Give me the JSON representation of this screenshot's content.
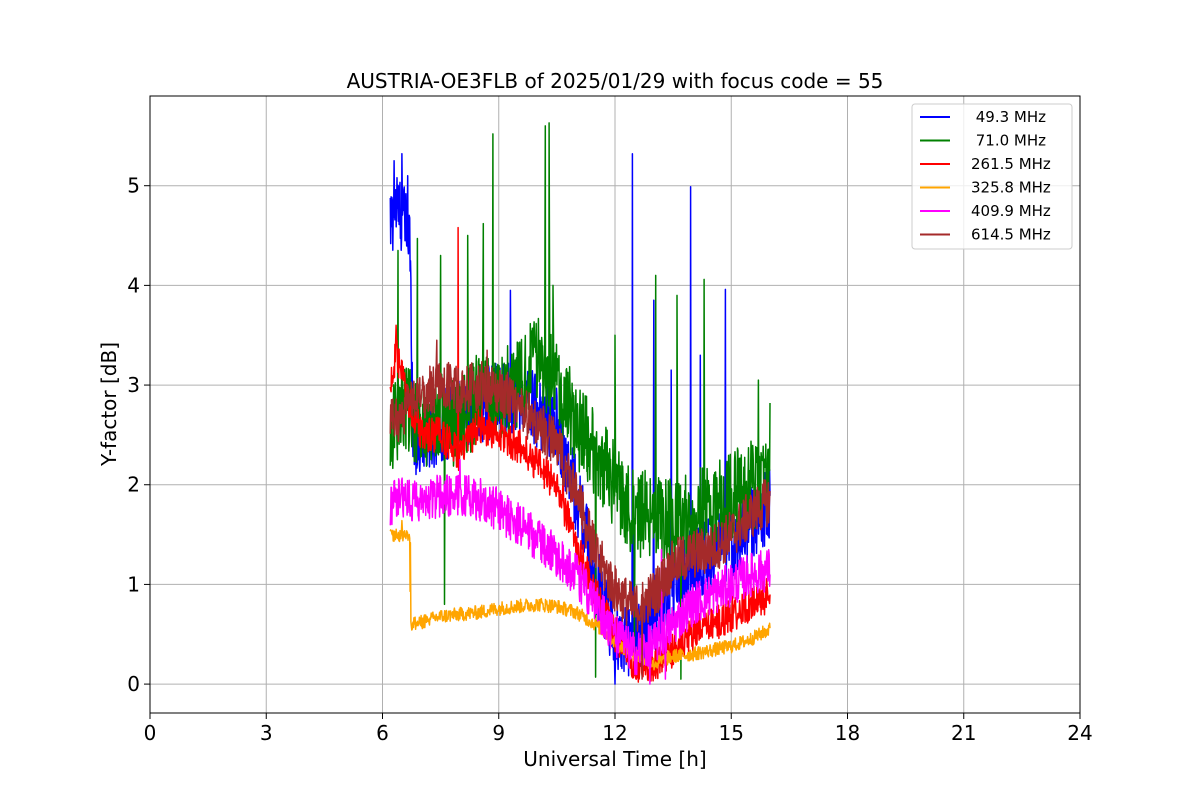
{
  "chart_data": {
    "type": "line",
    "title": "AUSTRIA-OE3FLB of 2025/01/29 with focus code = 55",
    "xlabel": "Universal Time [h]",
    "ylabel": "Y-factor [dB]",
    "xlim": [
      0,
      24
    ],
    "ylim": [
      -0.29,
      5.9
    ],
    "xticks": [
      0,
      3,
      6,
      9,
      12,
      15,
      18,
      21,
      24
    ],
    "yticks": [
      0,
      1,
      2,
      3,
      4,
      5
    ],
    "grid": true,
    "legend_position": "top-right",
    "series": [
      {
        "name": " 49.3 MHz",
        "color": "#0000ff",
        "base": [
          [
            6.2,
            4.6
          ],
          [
            6.35,
            4.8
          ],
          [
            6.5,
            4.7
          ],
          [
            6.7,
            4.5
          ],
          [
            6.8,
            2.4
          ],
          [
            7.5,
            2.6
          ],
          [
            8.5,
            2.8
          ],
          [
            9.5,
            2.9
          ],
          [
            10.5,
            2.6
          ],
          [
            11.0,
            1.9
          ],
          [
            11.5,
            1.1
          ],
          [
            12.0,
            0.5
          ],
          [
            12.5,
            0.4
          ],
          [
            13.0,
            0.6
          ],
          [
            13.5,
            1.0
          ],
          [
            14.0,
            1.2
          ],
          [
            15.0,
            1.4
          ],
          [
            16.0,
            1.8
          ]
        ],
        "noise": 0.38,
        "spikes": [
          [
            6.3,
            5.25
          ],
          [
            6.5,
            5.32
          ],
          [
            6.65,
            5.1
          ],
          [
            9.3,
            3.95
          ],
          [
            12.45,
            5.32
          ],
          [
            13.0,
            3.85
          ],
          [
            13.45,
            3.15
          ],
          [
            13.95,
            4.99
          ],
          [
            14.2,
            3.3
          ],
          [
            14.85,
            3.96
          ]
        ],
        "dips": [
          [
            12.0,
            0.0
          ],
          [
            12.6,
            0.05
          ]
        ]
      },
      {
        "name": " 71.0 MHz",
        "color": "#008000",
        "base": [
          [
            6.2,
            2.5
          ],
          [
            6.5,
            2.8
          ],
          [
            7.0,
            2.6
          ],
          [
            7.5,
            2.7
          ],
          [
            8.0,
            2.6
          ],
          [
            8.5,
            2.9
          ],
          [
            9.0,
            2.9
          ],
          [
            9.5,
            3.0
          ],
          [
            10.0,
            3.3
          ],
          [
            10.5,
            3.0
          ],
          [
            11.0,
            2.6
          ],
          [
            11.5,
            2.3
          ],
          [
            12.0,
            2.0
          ],
          [
            12.5,
            1.7
          ],
          [
            13.0,
            1.7
          ],
          [
            13.5,
            1.6
          ],
          [
            14.0,
            1.7
          ],
          [
            14.5,
            1.8
          ],
          [
            15.0,
            1.9
          ],
          [
            15.5,
            2.0
          ],
          [
            16.0,
            2.0
          ]
        ],
        "noise": 0.45,
        "spikes": [
          [
            6.4,
            4.35
          ],
          [
            6.9,
            4.47
          ],
          [
            7.5,
            4.3
          ],
          [
            8.2,
            4.5
          ],
          [
            8.6,
            4.62
          ],
          [
            8.85,
            5.52
          ],
          [
            10.2,
            5.6
          ],
          [
            10.3,
            5.63
          ],
          [
            10.4,
            4.0
          ],
          [
            12.0,
            3.5
          ],
          [
            13.05,
            4.1
          ],
          [
            13.6,
            3.9
          ],
          [
            14.3,
            4.06
          ],
          [
            15.7,
            3.05
          ],
          [
            16.0,
            2.82
          ]
        ],
        "dips": [
          [
            7.6,
            0.8
          ],
          [
            11.5,
            0.07
          ],
          [
            13.7,
            0.05
          ],
          [
            12.5,
            0.2
          ]
        ]
      },
      {
        "name": "261.5 MHz",
        "color": "#ff0000",
        "base": [
          [
            6.2,
            3.0
          ],
          [
            6.35,
            3.3
          ],
          [
            6.5,
            3.1
          ],
          [
            6.7,
            2.8
          ],
          [
            7.0,
            2.5
          ],
          [
            7.5,
            2.5
          ],
          [
            8.0,
            2.3
          ],
          [
            8.5,
            2.6
          ],
          [
            9.5,
            2.4
          ],
          [
            10.5,
            2.0
          ],
          [
            11.0,
            1.4
          ],
          [
            11.5,
            0.9
          ],
          [
            12.0,
            0.5
          ],
          [
            12.5,
            0.2
          ],
          [
            13.0,
            0.2
          ],
          [
            13.5,
            0.35
          ],
          [
            14.0,
            0.5
          ],
          [
            14.5,
            0.6
          ],
          [
            15.0,
            0.7
          ],
          [
            15.5,
            0.8
          ],
          [
            16.0,
            0.9
          ]
        ],
        "noise": 0.18,
        "spikes": [
          [
            6.35,
            3.6
          ],
          [
            7.95,
            4.58
          ]
        ],
        "dips": [
          [
            12.6,
            0.02
          ]
        ]
      },
      {
        "name": "325.8 MHz",
        "color": "#ffa500",
        "base": [
          [
            6.2,
            1.5
          ],
          [
            6.7,
            1.5
          ],
          [
            6.72,
            0.6
          ],
          [
            7.0,
            0.62
          ],
          [
            7.5,
            0.68
          ],
          [
            8.0,
            0.7
          ],
          [
            8.5,
            0.72
          ],
          [
            9.0,
            0.76
          ],
          [
            9.5,
            0.78
          ],
          [
            10.0,
            0.8
          ],
          [
            10.5,
            0.78
          ],
          [
            11.0,
            0.72
          ],
          [
            11.5,
            0.6
          ],
          [
            12.0,
            0.42
          ],
          [
            12.5,
            0.3
          ],
          [
            13.0,
            0.2
          ],
          [
            13.5,
            0.28
          ],
          [
            14.0,
            0.3
          ],
          [
            14.5,
            0.34
          ],
          [
            15.0,
            0.38
          ],
          [
            15.5,
            0.45
          ],
          [
            16.0,
            0.55
          ]
        ],
        "noise": 0.07,
        "spikes": [
          [
            6.72,
            1.42
          ],
          [
            6.5,
            1.64
          ]
        ],
        "dips": []
      },
      {
        "name": "409.9 MHz",
        "color": "#ff00ff",
        "base": [
          [
            6.2,
            1.8
          ],
          [
            6.5,
            1.9
          ],
          [
            7.0,
            1.8
          ],
          [
            7.5,
            1.9
          ],
          [
            8.0,
            1.9
          ],
          [
            8.5,
            1.85
          ],
          [
            9.0,
            1.75
          ],
          [
            9.5,
            1.6
          ],
          [
            10.0,
            1.45
          ],
          [
            10.5,
            1.3
          ],
          [
            11.0,
            1.1
          ],
          [
            11.5,
            0.8
          ],
          [
            12.0,
            0.5
          ],
          [
            12.5,
            0.3
          ],
          [
            13.0,
            0.4
          ],
          [
            13.5,
            0.6
          ],
          [
            14.0,
            0.8
          ],
          [
            14.5,
            0.9
          ],
          [
            15.0,
            1.0
          ],
          [
            15.5,
            1.1
          ],
          [
            16.0,
            1.15
          ]
        ],
        "noise": 0.22,
        "spikes": [
          [
            8.0,
            2.25
          ],
          [
            13.2,
            1.35
          ]
        ],
        "dips": [
          [
            12.9,
            0.0
          ],
          [
            13.3,
            0.05
          ]
        ]
      },
      {
        "name": "614.5 MHz",
        "color": "#a52a2a",
        "base": [
          [
            6.2,
            2.6
          ],
          [
            6.5,
            2.7
          ],
          [
            7.0,
            2.9
          ],
          [
            7.5,
            3.0
          ],
          [
            8.0,
            2.95
          ],
          [
            8.5,
            3.0
          ],
          [
            9.0,
            2.95
          ],
          [
            9.5,
            2.8
          ],
          [
            10.0,
            2.6
          ],
          [
            10.5,
            2.4
          ],
          [
            11.0,
            1.9
          ],
          [
            11.5,
            1.3
          ],
          [
            12.0,
            0.95
          ],
          [
            12.5,
            0.75
          ],
          [
            13.0,
            0.9
          ],
          [
            13.5,
            1.2
          ],
          [
            14.0,
            1.3
          ],
          [
            14.5,
            1.35
          ],
          [
            15.0,
            1.5
          ],
          [
            15.5,
            1.7
          ],
          [
            16.0,
            1.85
          ]
        ],
        "noise": 0.25,
        "spikes": [
          [
            7.4,
            3.45
          ],
          [
            8.7,
            3.35
          ]
        ],
        "dips": [
          [
            12.7,
            0.05
          ]
        ]
      }
    ]
  }
}
